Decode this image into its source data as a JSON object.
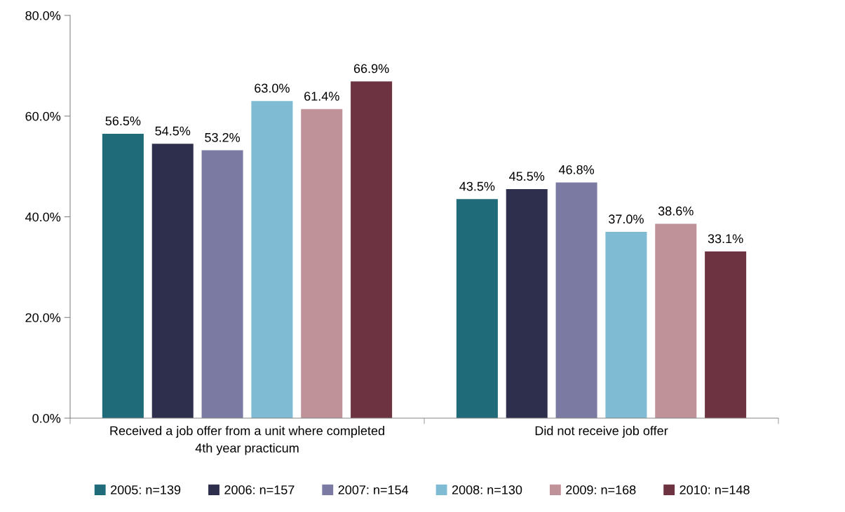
{
  "chart_data": {
    "type": "bar",
    "categories": [
      "Received a job offer from a unit where completed\n4th year practicum",
      "Did not receive job offer"
    ],
    "ylim": [
      0,
      80
    ],
    "yticks": [
      {
        "value": 0,
        "label": "0.0%"
      },
      {
        "value": 20,
        "label": "20.0%"
      },
      {
        "value": 40,
        "label": "40.0%"
      },
      {
        "value": 60,
        "label": "60.0%"
      },
      {
        "value": 80,
        "label": "80.0%"
      }
    ],
    "grid": false,
    "legend": "bottom",
    "series": [
      {
        "name": "2005: n=139",
        "color": "#1f6b7a",
        "values": [
          56.5,
          43.5
        ],
        "value_labels": [
          "56.5%",
          "43.5%"
        ]
      },
      {
        "name": "2006: n=157",
        "color": "#2e2f4d",
        "values": [
          54.5,
          45.5
        ],
        "value_labels": [
          "54.5%",
          "45.5%"
        ]
      },
      {
        "name": "2007: n=154",
        "color": "#7a7aa3",
        "values": [
          53.2,
          46.8
        ],
        "value_labels": [
          "53.2%",
          "46.8%"
        ]
      },
      {
        "name": "2008: n=130",
        "color": "#7fbcd4",
        "values": [
          63.0,
          37.0
        ],
        "value_labels": [
          "63.0%",
          "37.0%"
        ]
      },
      {
        "name": "2009: n=168",
        "color": "#bf9199",
        "values": [
          61.4,
          38.6
        ],
        "value_labels": [
          "61.4%",
          "38.6%"
        ]
      },
      {
        "name": "2010: n=148",
        "color": "#6e3340",
        "values": [
          66.9,
          33.1
        ],
        "value_labels": [
          "66.9%",
          "33.1%"
        ]
      }
    ]
  }
}
